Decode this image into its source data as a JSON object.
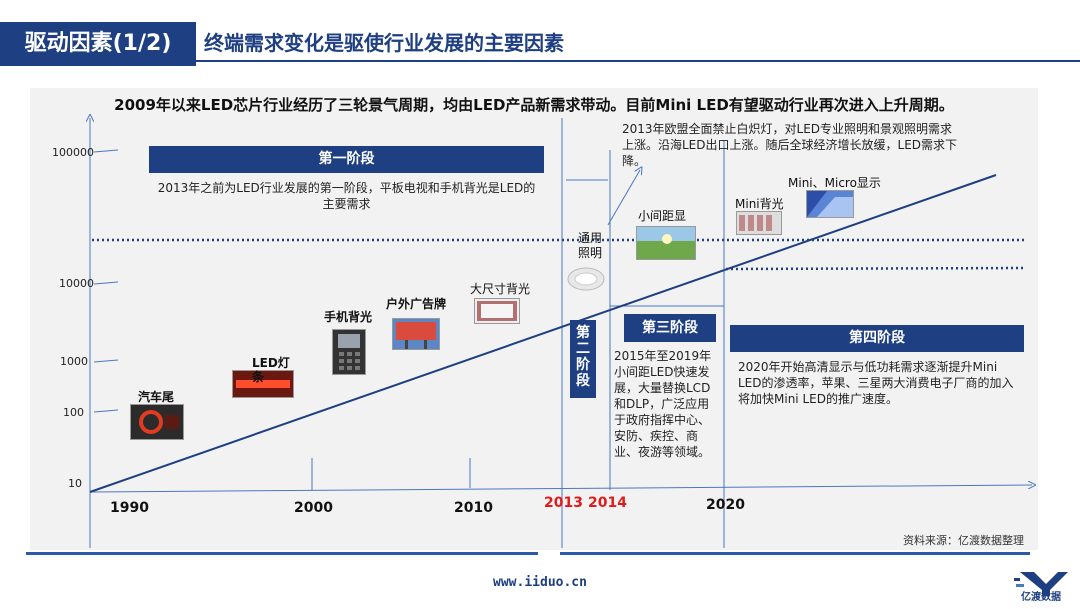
{
  "header": {
    "tag": "驱动因素(1/2)",
    "title": "终端需求变化是驱使行业发展的主要因素"
  },
  "headline": "2009年以来LED芯片行业经历了三轮景气周期，均由LED产品新需求带动。目前Mini LED有望驱动行业再次进入上升周期。",
  "y_ticks": [
    "100000",
    "10000",
    "1000",
    "100",
    "10"
  ],
  "x_years": [
    "1990",
    "2000",
    "2010",
    "2013",
    "2014",
    "2020"
  ],
  "stages": {
    "s1": {
      "label": "第一阶段",
      "desc": "2013年之前为LED行业发展的第一阶段，平板电视和手机背光是LED的主要需求"
    },
    "s2": {
      "label": "第二阶段",
      "desc": "2013年欧盟全面禁止白炽灯，对LED专业照明和景观照明需求上涨。沿海LED出口上涨。随后全球经济增长放缓，LED需求下降。"
    },
    "s3": {
      "label": "第三阶段",
      "desc": "2015年至2019年小间距LED快速发展，大量替换LCD和DLP，广泛应用于政府指挥中心、安防、疾控、商业、夜游等领域。"
    },
    "s4": {
      "label": "第四阶段",
      "desc": "2020年开始高清显示与低功耗需求逐渐提升Mini LED的渗透率，苹果、三星两大消费电子厂商的加入将加快Mini LED的推广速度。"
    }
  },
  "products": {
    "car_tail": "汽车尾",
    "led_strip": "LED灯条",
    "phone_backlight": "手机背光",
    "outdoor_ad": "户外广告牌",
    "large_backlight": "大尺寸背光",
    "general_lighting": "通用照明",
    "fine_pitch": "小间距显",
    "mini_backlight": "Mini背光",
    "mini_micro": "Mini、Micro显示"
  },
  "source": "资料来源：亿渡数据整理",
  "footer": {
    "website": "www.iiduo.cn",
    "logo_text": "亿渡数据"
  },
  "colors": {
    "brand": "#1e3f82",
    "highlight": "#e01b1b",
    "panel": "#f2f2f2"
  }
}
